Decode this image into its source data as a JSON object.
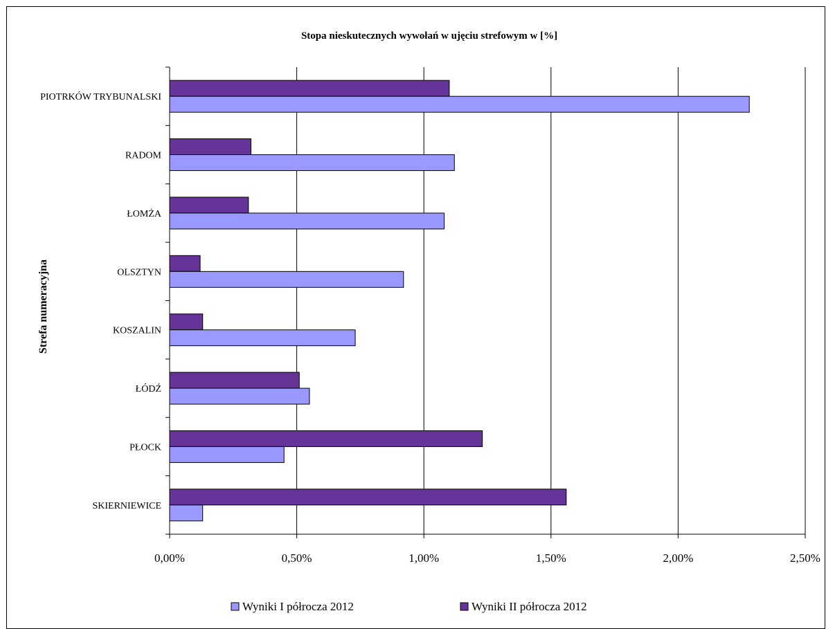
{
  "chart_data": {
    "type": "bar",
    "orientation": "horizontal",
    "title": "Stopa nieskutecznych wywołań w ujęciu strefowym w [%]",
    "ylabel": "Strefa numeracyjna",
    "xlabel": "",
    "categories": [
      "PIOTRKÓW TRYBUNALSKI",
      "RADOM",
      "ŁOMŻA",
      "OLSZTYN",
      "KOSZALIN",
      "ŁÓDŹ",
      "PŁOCK",
      "SKIERNIEWICE"
    ],
    "series": [
      {
        "name": "Wyniki I półrocza 2012",
        "color": "#9999ff",
        "values": [
          2.28,
          1.12,
          1.08,
          0.92,
          0.73,
          0.55,
          0.45,
          0.13
        ]
      },
      {
        "name": "Wyniki II półrocza 2012",
        "color": "#663399",
        "values": [
          1.1,
          0.32,
          0.31,
          0.12,
          0.13,
          0.51,
          1.23,
          1.56
        ]
      }
    ],
    "xlim": [
      0,
      2.5
    ],
    "xticks": [
      "0,00%",
      "0,50%",
      "1,00%",
      "1,50%",
      "2,00%",
      "2,50%"
    ],
    "xtick_values": [
      0,
      0.5,
      1.0,
      1.5,
      2.0,
      2.5
    ],
    "grid": "vertical",
    "legend": "bottom"
  }
}
